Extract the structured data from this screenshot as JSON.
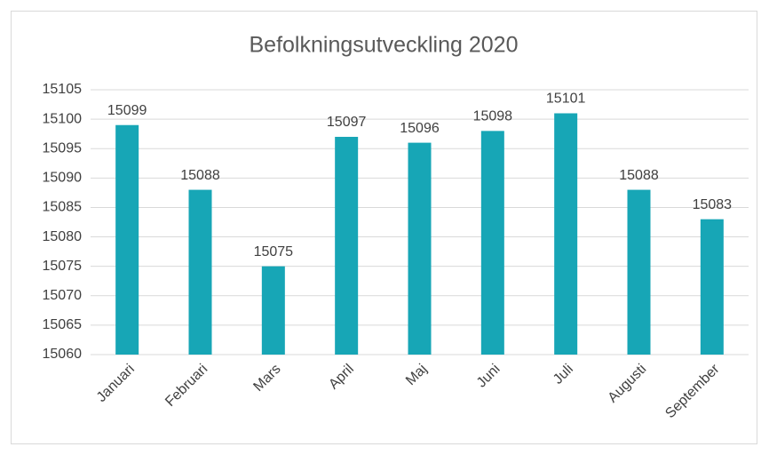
{
  "chart_data": {
    "type": "bar",
    "title": "Befolkningsutveckling 2020",
    "categories": [
      "Januari",
      "Februari",
      "Mars",
      "April",
      "Maj",
      "Juni",
      "Juli",
      "Augusti",
      "September"
    ],
    "values": [
      15099,
      15088,
      15075,
      15097,
      15096,
      15098,
      15101,
      15088,
      15083
    ],
    "color": "#17a6b6",
    "ylim": [
      15060,
      15105
    ],
    "yticks": [
      15060,
      15065,
      15070,
      15075,
      15080,
      15085,
      15090,
      15095,
      15100,
      15105
    ],
    "grid": true
  }
}
